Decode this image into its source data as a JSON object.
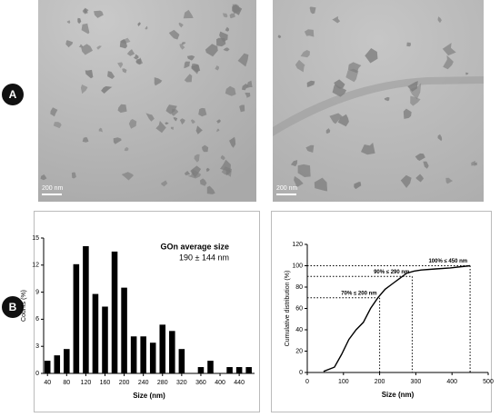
{
  "panels": {
    "labels": [
      "A",
      "B"
    ],
    "scale_bars": [
      "200 nm",
      "200 nm"
    ]
  },
  "chart_data": [
    {
      "type": "histogram",
      "annotation_title": "GOn average size",
      "annotation_value": "190 ± 144 nm",
      "x_label": "Size (nm)",
      "y_label": "Counts (%)",
      "bins": [
        30,
        50,
        70,
        90,
        110,
        130,
        150,
        170,
        190,
        210,
        230,
        250,
        270,
        290,
        310,
        330,
        350,
        370,
        390,
        410,
        430,
        450,
        470
      ],
      "values": [
        1.4,
        2.0,
        2.7,
        12.1,
        14.1,
        8.8,
        7.4,
        13.5,
        9.5,
        4.1,
        4.1,
        3.4,
        5.4,
        4.7,
        2.7,
        0,
        0.7,
        1.4,
        0,
        0.7,
        0.7,
        0.7
      ],
      "color": "#000000",
      "xlim": [
        32,
        472
      ],
      "ylim": [
        0,
        15
      ],
      "xticks": [
        40,
        80,
        120,
        160,
        200,
        240,
        280,
        320,
        360,
        400,
        440
      ],
      "yticks": [
        0,
        3,
        6,
        9,
        12,
        15
      ]
    },
    {
      "type": "line",
      "x_label": "Size (nm)",
      "y_label": "Cumulative distribution (%)",
      "x": [
        45,
        75,
        95,
        115,
        135,
        155,
        175,
        195,
        215,
        235,
        255,
        275,
        295,
        315,
        355,
        395,
        450
      ],
      "values": [
        1,
        5,
        17,
        31,
        40,
        47,
        60,
        70,
        78,
        83,
        88,
        93,
        95,
        96,
        97,
        98,
        100
      ],
      "color": "#000000",
      "xlim": [
        0,
        500
      ],
      "ylim": [
        0,
        120
      ],
      "xticks": [
        0,
        100,
        200,
        300,
        400,
        500
      ],
      "yticks": [
        0,
        20,
        40,
        60,
        80,
        100,
        120
      ],
      "reference_lines": [
        {
          "x": 200,
          "y": 70,
          "label": "70% ≤ 200 nm"
        },
        {
          "x": 290,
          "y": 90,
          "label": "90% ≤ 290 nm"
        },
        {
          "x": 450,
          "y": 100,
          "label": "100% ≤ 450 nm"
        }
      ]
    }
  ]
}
